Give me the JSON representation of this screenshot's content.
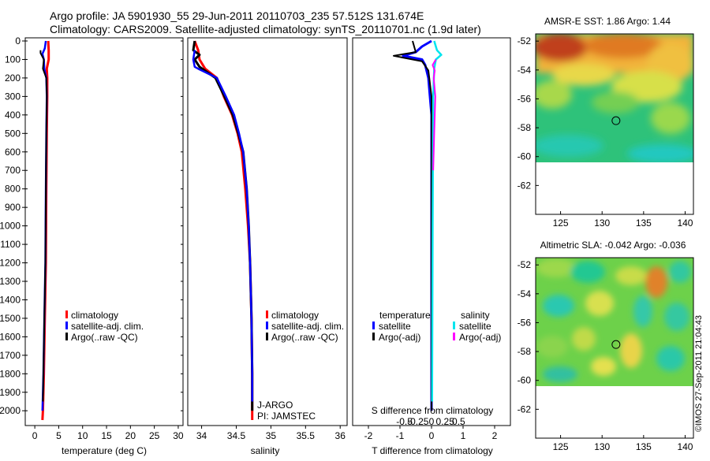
{
  "header": {
    "line1": "Argo profile: JA 5901930_55 29-Jun-2011 20110703_235 57.512S 131.674E",
    "line2": "Climatology: CARS2009. Satellite-adjusted climatology: synTS_20110701.nc (1.9d later)"
  },
  "colors": {
    "climatology": "#ff0000",
    "satellite": "#0000ff",
    "argo": "#000000",
    "sal_satellite": "#00e5ee",
    "sal_argo": "#ff00ff"
  },
  "chart_data": [
    {
      "type": "line",
      "id": "temperature",
      "xlabel": "temperature (deg C)",
      "ylabel": "",
      "xlim": [
        -2,
        31
      ],
      "ylim": [
        2080,
        0
      ],
      "xticks": [
        "0",
        "5",
        "10",
        "15",
        "20",
        "25",
        "30"
      ],
      "yticks": [
        "0",
        "100",
        "200",
        "300",
        "400",
        "500",
        "600",
        "700",
        "800",
        "900",
        "1000",
        "1100",
        "1200",
        "1300",
        "1400",
        "1500",
        "1600",
        "1700",
        "1800",
        "1900",
        "2000"
      ],
      "legend": [
        "climatology",
        "satellite-adj. clim.",
        "Argo(..raw -QC)"
      ],
      "series": [
        {
          "name": "climatology",
          "points": [
            [
              2.8,
              0
            ],
            [
              2.9,
              50
            ],
            [
              2.9,
              100
            ],
            [
              2.5,
              150
            ],
            [
              2.6,
              200
            ],
            [
              2.6,
              300
            ],
            [
              2.5,
              500
            ],
            [
              2.4,
              800
            ],
            [
              2.3,
              1200
            ],
            [
              2.1,
              1500
            ],
            [
              1.9,
              1800
            ],
            [
              1.7,
              2000
            ],
            [
              1.6,
              2050
            ]
          ]
        },
        {
          "name": "satellite-adj. clim.",
          "points": [
            [
              2.3,
              0
            ],
            [
              2.1,
              40
            ],
            [
              1.6,
              70
            ],
            [
              1.9,
              100
            ],
            [
              2.0,
              150
            ],
            [
              2.4,
              200
            ],
            [
              2.5,
              300
            ],
            [
              2.4,
              500
            ],
            [
              2.3,
              800
            ],
            [
              2.2,
              1200
            ],
            [
              2.0,
              1500
            ],
            [
              1.8,
              1800
            ],
            [
              1.6,
              2000
            ]
          ]
        },
        {
          "name": "Argo(..raw -QC)",
          "points": [
            [
              1.2,
              50
            ],
            [
              1.2,
              65
            ],
            [
              1.9,
              100
            ],
            [
              1.7,
              150
            ],
            [
              2.4,
              200
            ],
            [
              2.5,
              300
            ],
            [
              2.4,
              500
            ],
            [
              2.3,
              800
            ],
            [
              2.2,
              1200
            ],
            [
              2.0,
              1500
            ],
            [
              1.8,
              1800
            ],
            [
              1.7,
              1950
            ]
          ]
        }
      ]
    },
    {
      "type": "line",
      "id": "salinity",
      "xlabel": "salinity",
      "xlim": [
        33.8,
        36.1
      ],
      "ylim": [
        2080,
        0
      ],
      "xticks": [
        "34",
        "34.5",
        "35",
        "35.5",
        "36"
      ],
      "legend": [
        "climatology",
        "satellite-adj. clim.",
        "Argo(..raw -QC)"
      ],
      "annotation": [
        "J-ARGO",
        "PI: JAMSTEC"
      ],
      "series": [
        {
          "name": "climatology",
          "points": [
            [
              33.9,
              0
            ],
            [
              33.95,
              50
            ],
            [
              33.97,
              100
            ],
            [
              34.05,
              150
            ],
            [
              34.22,
              200
            ],
            [
              34.32,
              300
            ],
            [
              34.44,
              400
            ],
            [
              34.52,
              500
            ],
            [
              34.58,
              600
            ],
            [
              34.63,
              800
            ],
            [
              34.67,
              1000
            ],
            [
              34.7,
              1200
            ],
            [
              34.72,
              1500
            ],
            [
              34.73,
              1800
            ],
            [
              34.73,
              2000
            ],
            [
              34.73,
              2050
            ]
          ]
        },
        {
          "name": "satellite-adj. clim.",
          "points": [
            [
              33.9,
              0
            ],
            [
              33.88,
              50
            ],
            [
              33.97,
              75
            ],
            [
              33.9,
              100
            ],
            [
              33.97,
              140
            ],
            [
              34.2,
              200
            ],
            [
              34.33,
              300
            ],
            [
              34.45,
              400
            ],
            [
              34.53,
              500
            ],
            [
              34.6,
              600
            ],
            [
              34.65,
              800
            ],
            [
              34.68,
              1000
            ],
            [
              34.7,
              1200
            ],
            [
              34.72,
              1500
            ],
            [
              34.73,
              1800
            ],
            [
              34.73,
              2000
            ]
          ]
        },
        {
          "name": "Argo(..raw -QC)",
          "points": [
            [
              33.9,
              50
            ],
            [
              33.88,
              100
            ],
            [
              33.9,
              140
            ],
            [
              33.95,
              150
            ],
            [
              34.22,
              200
            ],
            [
              34.35,
              300
            ],
            [
              34.47,
              400
            ],
            [
              34.54,
              500
            ],
            [
              34.6,
              600
            ],
            [
              34.65,
              800
            ],
            [
              34.68,
              1000
            ],
            [
              34.7,
              1200
            ],
            [
              34.72,
              1500
            ],
            [
              34.73,
              1800
            ],
            [
              34.73,
              1950
            ]
          ]
        }
      ]
    },
    {
      "type": "line",
      "id": "difference",
      "xlabel": "T difference from climatology",
      "xlabel_top": "S difference from climatology",
      "xlim": [
        -2.5,
        2.5
      ],
      "ylim": [
        2080,
        0
      ],
      "xticks": [
        "-2",
        "-1",
        "0",
        "1",
        "2"
      ],
      "xticks_top": [
        "-0.5",
        "-0.25",
        "0",
        "0.25",
        "0.5"
      ],
      "legend_t_title": "temperature",
      "legend_s_title": "salinity",
      "legend": [
        "satellite",
        "Argo(-adj)",
        "satellite",
        "Argo(-adj)"
      ],
      "series": [
        {
          "name": "T satellite",
          "points": [
            [
              0.0,
              0
            ],
            [
              -0.3,
              30
            ],
            [
              -0.5,
              60
            ],
            [
              -0.9,
              80
            ],
            [
              -0.3,
              100
            ],
            [
              -0.2,
              130
            ],
            [
              -0.1,
              200
            ],
            [
              0,
              400
            ],
            [
              0,
              2000
            ]
          ]
        },
        {
          "name": "T Argo(-adj)",
          "points": [
            [
              -0.6,
              0
            ],
            [
              -0.5,
              60
            ],
            [
              -1.2,
              80
            ],
            [
              -0.3,
              110
            ],
            [
              -0.1,
              160
            ],
            [
              0,
              300
            ],
            [
              0,
              2000
            ]
          ]
        },
        {
          "name": "S satellite",
          "points": [
            [
              0.05,
              0
            ],
            [
              0.1,
              50
            ],
            [
              0.18,
              75
            ],
            [
              0.08,
              100
            ],
            [
              0.05,
              150
            ],
            [
              0.03,
              300
            ],
            [
              0.02,
              1000
            ],
            [
              0.01,
              1950
            ]
          ]
        },
        {
          "name": "S Argo(-adj)",
          "points": [
            [
              0.08,
              100
            ],
            [
              0.02,
              130
            ],
            [
              0.06,
              160
            ],
            [
              0.04,
              200
            ],
            [
              0.07,
              300
            ],
            [
              0.05,
              500
            ],
            [
              0.03,
              700
            ]
          ]
        }
      ]
    },
    {
      "type": "heatmap",
      "id": "sst-map",
      "title": "AMSR-E SST: 1.86 Argo: 1.44",
      "xticks": [
        "125",
        "130",
        "135",
        "140"
      ],
      "yticks": [
        "-52",
        "-54",
        "-56",
        "-58",
        "-60",
        "-62"
      ],
      "xlim": [
        122,
        141
      ],
      "ylim": [
        -64,
        -51.5
      ],
      "marker": [
        131.674,
        -57.512
      ]
    },
    {
      "type": "heatmap",
      "id": "sla-map",
      "title": "Altimetric SLA: -0.042 Argo: -0.036",
      "xticks": [
        "125",
        "130",
        "135",
        "140"
      ],
      "yticks": [
        "-52",
        "-54",
        "-56",
        "-58",
        "-60",
        "-62"
      ],
      "xlim": [
        122,
        141
      ],
      "ylim": [
        -64,
        -51.5
      ],
      "marker": [
        131.674,
        -57.512
      ]
    }
  ],
  "credit": "©IMOS 27-Sep-2011 21:04:43"
}
